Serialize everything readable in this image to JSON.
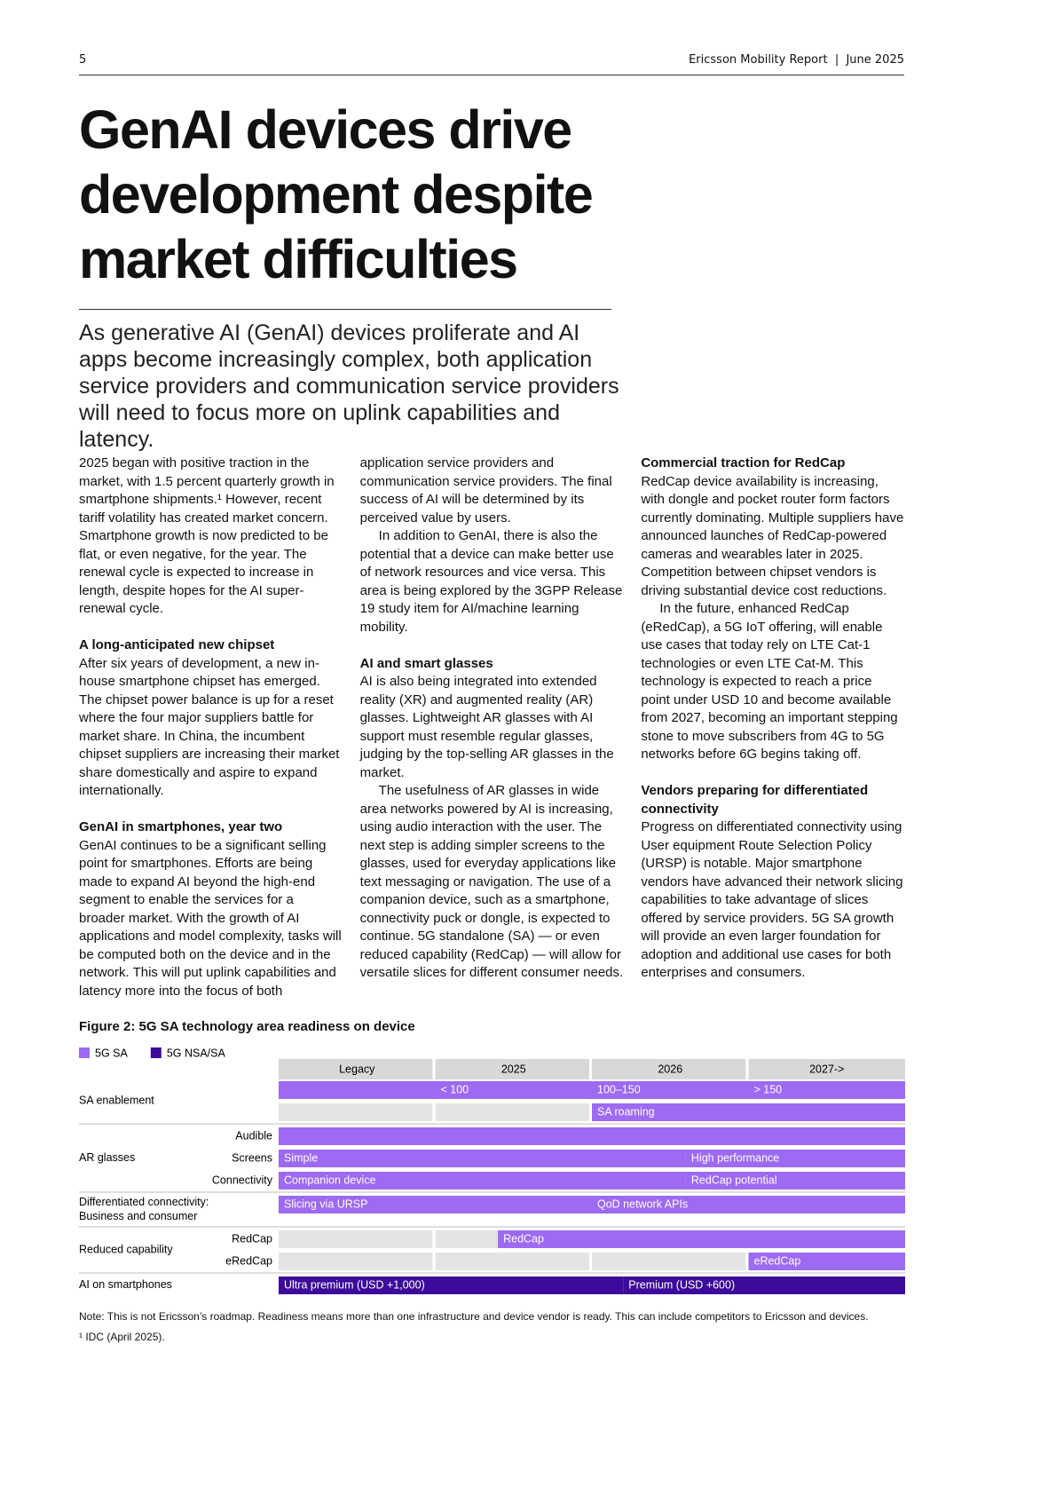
{
  "header": {
    "page_number": "5",
    "publication": "Ericsson Mobility Report  |  June 2025"
  },
  "title": "GenAI devices drive development despite market difficulties",
  "lead": "As generative AI (GenAI) devices proliferate and AI apps become increasingly complex, both application service providers and communication service providers will need to focus more on uplink capabilities and latency.",
  "sections": [
    {
      "paragraphs": [
        "2025 began with positive traction in the market, with 1.5 percent quarterly growth in smartphone shipments.¹ However, recent tariff volatility has created market concern. Smartphone growth is now predicted to be flat, or even negative, for the year. The renewal cycle is expected to increase in length, despite hopes for the AI super-renewal cycle."
      ]
    },
    {
      "heading": "A long-anticipated new chipset",
      "paragraphs": [
        "After six years of development, a new in-house smartphone chipset has emerged. The chipset power balance is up for a reset where the four major suppliers battle for market share. In China, the incumbent chipset suppliers are increasing their market share domestically and aspire to expand internationally."
      ]
    },
    {
      "heading": "GenAI in smartphones, year two",
      "paragraphs": [
        "GenAI continues to be a significant selling point for smartphones. Efforts are being made to expand AI beyond the high-end segment to enable the services for a broader market. With the growth of AI applications and model complexity, tasks will be computed both on the device and in the network. This will put uplink capabilities and latency more into the focus of both application service providers and communication service providers. The final success of AI will be determined by its perceived value by users.",
        "In addition to GenAI, there is also the potential that a device can make better use of network resources and vice versa. This area is being explored by the 3GPP Release 19 study item for AI/machine learning mobility."
      ]
    },
    {
      "heading": "AI and smart glasses",
      "paragraphs": [
        "AI is also being integrated into extended reality (XR) and augmented reality (AR) glasses. Lightweight AR glasses with AI support must resemble regular glasses, judging by the top-selling AR glasses in the market.",
        "The usefulness of AR glasses in wide area networks powered by AI is increasing, using audio interaction with the user. The next step is adding simpler screens to the glasses, used for everyday applications like text messaging or navigation. The use of a companion device, such as a smartphone, connectivity puck or dongle, is expected to continue. 5G standalone (SA) — or even reduced capability (RedCap) — will allow for versatile slices for different consumer needs."
      ]
    },
    {
      "heading": "Commercial traction for RedCap",
      "paragraphs": [
        "RedCap device availability is increasing, with dongle and pocket router form factors currently dominating. Multiple suppliers have announced launches of RedCap-powered cameras and wearables later in 2025. Competition between chipset vendors is driving substantial device cost reductions.",
        "In the future, enhanced RedCap (eRedCap), a 5G IoT offering, will enable use cases that today rely on LTE Cat-1 technologies or even LTE Cat-M. This technology is expected to reach a price point under USD 10 and become available from 2027, becoming an important stepping stone to move subscribers from 4G to 5G networks before 6G begins taking off."
      ]
    },
    {
      "heading": "Vendors preparing for differentiated connectivity",
      "paragraphs": [
        "Progress on differentiated connectivity using User equipment Route Selection Policy (URSP) is notable. Major smartphone vendors have advanced their network slicing capabilities to take advantage of slices offered by service providers. 5G SA growth will provide an even larger foundation for adoption and additional use cases for both enterprises and consumers."
      ]
    }
  ],
  "figure": {
    "title": "Figure 2: 5G SA technology area readiness on device",
    "legend": [
      {
        "name": "5G SA",
        "color": "#9d6af2"
      },
      {
        "name": "5G NSA/SA",
        "color": "#3c0b9b"
      }
    ],
    "periods": [
      "Legacy",
      "2025",
      "2026",
      "2027->"
    ],
    "groups": [
      {
        "label": "SA enablement",
        "lines": [
          {
            "bars": [
              {
                "start": 0,
                "end": 1,
                "color": "#9d6af2"
              },
              {
                "label": "< 100",
                "start": 1,
                "end": 2,
                "color": "#9d6af2"
              },
              {
                "label": "100–150",
                "start": 2,
                "end": 3,
                "color": "#9d6af2"
              },
              {
                "label": "> 150",
                "start": 3,
                "end": 4,
                "color": "#9d6af2"
              }
            ]
          },
          {
            "bars": [
              {
                "label": "SA roaming",
                "start": 2,
                "end": 4,
                "color": "#9d6af2"
              }
            ]
          }
        ]
      },
      {
        "label": "AR glasses",
        "lines": [
          {
            "label": "Audible",
            "bars": [
              {
                "start": 0,
                "end": 4,
                "color": "#9d6af2"
              }
            ]
          },
          {
            "label": "Screens",
            "bars": [
              {
                "label": "Simple",
                "start": 0,
                "end": 2.6,
                "color": "#9d6af2"
              },
              {
                "label": "High performance",
                "start": 2.6,
                "end": 4,
                "color": "#9d6af2"
              }
            ]
          },
          {
            "label": "Connectivity",
            "bars": [
              {
                "label": "Companion device",
                "start": 0,
                "end": 2.6,
                "color": "#9d6af2"
              },
              {
                "label": "RedCap potential",
                "start": 2.6,
                "end": 4,
                "color": "#9d6af2"
              }
            ]
          }
        ]
      },
      {
        "label": "Differentiated connectivity:\nBusiness and consumer",
        "lines": [
          {
            "bars": [
              {
                "label": "Slicing via URSP",
                "start": 0,
                "end": 2,
                "color": "#9d6af2"
              },
              {
                "label": "QoD network APIs",
                "start": 2,
                "end": 4,
                "color": "#9d6af2"
              }
            ]
          }
        ]
      },
      {
        "label": "Reduced capability",
        "lines": [
          {
            "label": "RedCap",
            "bars": [
              {
                "label": "RedCap",
                "start": 1.4,
                "end": 4,
                "color": "#9d6af2"
              }
            ]
          },
          {
            "label": "eRedCap",
            "bars": [
              {
                "label": "eRedCap",
                "start": 3,
                "end": 4,
                "color": "#9d6af2"
              }
            ]
          }
        ]
      },
      {
        "label": "AI on smartphones",
        "lines": [
          {
            "bars": [
              {
                "label": "Ultra premium (USD +1,000)",
                "start": 0,
                "end": 2.2,
                "color": "#3c0b9b"
              },
              {
                "label": "Premium (USD +600)",
                "start": 2.2,
                "end": 4,
                "color": "#3c0b9b"
              }
            ]
          }
        ]
      }
    ],
    "note": "Note: This is not Ericsson’s roadmap. Readiness means more than one infrastructure and device vendor is ready. This can include competitors to Ericsson and devices.",
    "footnote": "¹ IDC (April 2025)."
  }
}
